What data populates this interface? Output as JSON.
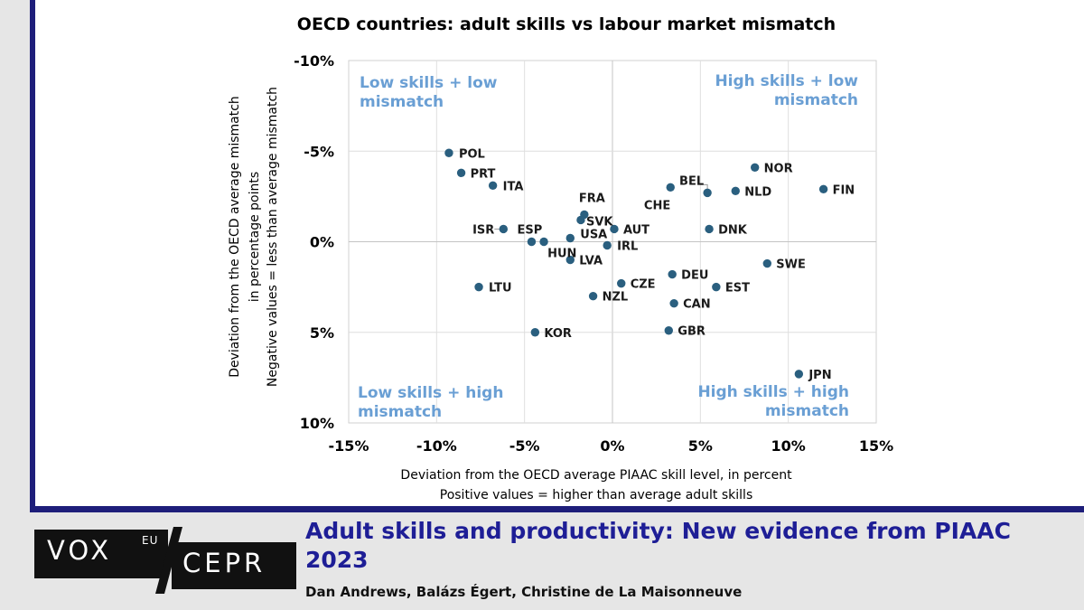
{
  "chart_data": {
    "type": "scatter",
    "title": "OECD countries: adult skills vs labour market mismatch",
    "xlabel": [
      "Deviation from the OECD average PIAAC skill level, in percent",
      "Positive values = higher than average adult skills"
    ],
    "ylabel": [
      "Deviation from the OECD average mismatch",
      "in percentage points",
      "Negative values = less  than average mismatch"
    ],
    "xlim": [
      -15,
      15
    ],
    "ylim": [
      10,
      -10
    ],
    "y_inverted": true,
    "x_ticks": [
      -15,
      -10,
      -5,
      0,
      5,
      10,
      15
    ],
    "y_ticks": [
      -10,
      -5,
      0,
      5,
      10
    ],
    "x_tick_labels": [
      "-15%",
      "-10%",
      "-5%",
      "0%",
      "5%",
      "10%",
      "15%"
    ],
    "y_tick_labels": [
      "-10%",
      "-5%",
      "0%",
      "5%",
      "10%"
    ],
    "grid": true,
    "point_color": "#2a5f7f",
    "quadrant_color": "#6a9fd4",
    "quadrants": [
      {
        "lines": [
          "Low skills + low",
          "mismatch"
        ],
        "corner": "top-left"
      },
      {
        "lines": [
          "High skills + low",
          "mismatch"
        ],
        "corner": "top-right"
      },
      {
        "lines": [
          "Low skills + high",
          "mismatch"
        ],
        "corner": "bottom-left"
      },
      {
        "lines": [
          "High skills + high",
          "mismatch"
        ],
        "corner": "bottom-right"
      }
    ],
    "points": [
      {
        "label": "POL",
        "x": -9.3,
        "y": -4.9
      },
      {
        "label": "PRT",
        "x": -8.6,
        "y": -3.8
      },
      {
        "label": "ITA",
        "x": -6.8,
        "y": -3.1
      },
      {
        "label": "ISR",
        "x": -6.2,
        "y": -0.7
      },
      {
        "label": "ESP",
        "x": -4.6,
        "y": 0.0
      },
      {
        "label": "HUN",
        "x": -3.9,
        "y": 0.0
      },
      {
        "label": "LTU",
        "x": -7.6,
        "y": 2.5
      },
      {
        "label": "KOR",
        "x": -4.4,
        "y": 5.0
      },
      {
        "label": "FRA",
        "x": -1.6,
        "y": -1.5
      },
      {
        "label": "SVK",
        "x": -1.8,
        "y": -1.2
      },
      {
        "label": "USA",
        "x": -2.4,
        "y": -0.2
      },
      {
        "label": "LVA",
        "x": -2.4,
        "y": 1.0
      },
      {
        "label": "AUT",
        "x": 0.1,
        "y": -0.7
      },
      {
        "label": "IRL",
        "x": -0.3,
        "y": 0.2
      },
      {
        "label": "NZL",
        "x": -1.1,
        "y": 3.0
      },
      {
        "label": "CZE",
        "x": 0.5,
        "y": 2.3
      },
      {
        "label": "BEL",
        "x": 5.4,
        "y": -2.7
      },
      {
        "label": "CHE",
        "x": 3.3,
        "y": -3.0
      },
      {
        "label": "NOR",
        "x": 8.1,
        "y": -4.1
      },
      {
        "label": "NLD",
        "x": 7.0,
        "y": -2.8
      },
      {
        "label": "FIN",
        "x": 12.0,
        "y": -2.9
      },
      {
        "label": "DNK",
        "x": 5.5,
        "y": -0.7
      },
      {
        "label": "SWE",
        "x": 8.8,
        "y": 1.2
      },
      {
        "label": "DEU",
        "x": 3.4,
        "y": 1.8
      },
      {
        "label": "EST",
        "x": 5.9,
        "y": 2.5
      },
      {
        "label": "CAN",
        "x": 3.5,
        "y": 3.4
      },
      {
        "label": "GBR",
        "x": 3.2,
        "y": 4.9
      },
      {
        "label": "JPN",
        "x": 10.6,
        "y": 7.3
      }
    ]
  },
  "footer": {
    "headline": "Adult skills and productivity: New evidence from PIAAC 2023",
    "authors": "Dan Andrews, Balázs Égert, Christine de La Maisonneuve"
  },
  "logo": {
    "vox": "VOX",
    "eu": "EU",
    "cepr": "CEPR"
  }
}
